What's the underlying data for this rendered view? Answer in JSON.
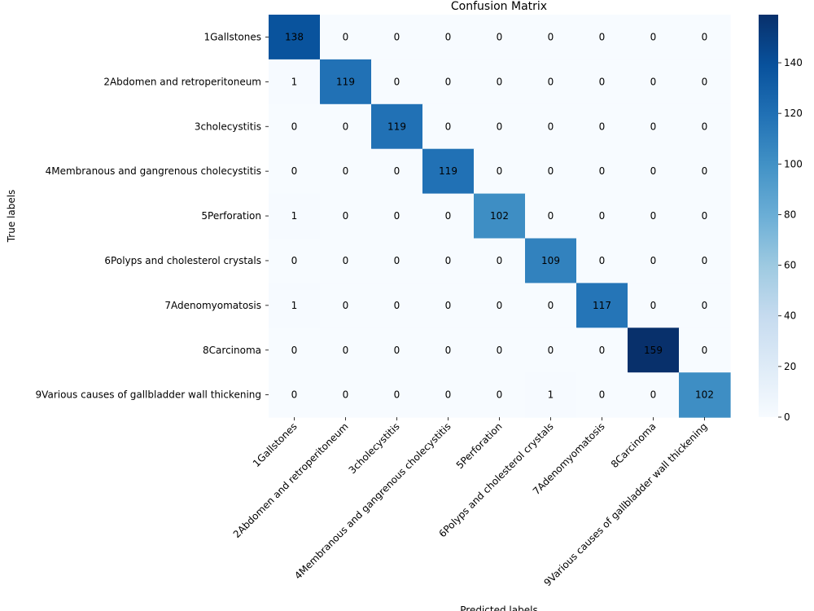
{
  "chart_data": {
    "type": "heatmap",
    "title": "Confusion Matrix",
    "xlabel": "Predicted labels",
    "ylabel": "True labels",
    "labels": [
      "1Gallstones",
      "2Abdomen and retroperitoneum",
      "3cholecystitis",
      "4Membranous and gangrenous cholecystitis",
      "5Perforation",
      "6Polyps and cholesterol crystals",
      "7Adenomyomatosis",
      "8Carcinoma",
      "9Various causes of gallbladder wall thickening"
    ],
    "matrix": [
      [
        138,
        0,
        0,
        0,
        0,
        0,
        0,
        0,
        0
      ],
      [
        1,
        119,
        0,
        0,
        0,
        0,
        0,
        0,
        0
      ],
      [
        0,
        0,
        119,
        0,
        0,
        0,
        0,
        0,
        0
      ],
      [
        0,
        0,
        0,
        119,
        0,
        0,
        0,
        0,
        0
      ],
      [
        1,
        0,
        0,
        0,
        102,
        0,
        0,
        0,
        0
      ],
      [
        0,
        0,
        0,
        0,
        0,
        109,
        0,
        0,
        0
      ],
      [
        1,
        0,
        0,
        0,
        0,
        0,
        117,
        0,
        0
      ],
      [
        0,
        0,
        0,
        0,
        0,
        0,
        0,
        159,
        0
      ],
      [
        0,
        0,
        0,
        0,
        0,
        1,
        0,
        0,
        102
      ]
    ],
    "colorbar": {
      "colormap": "Blues",
      "min": 0,
      "max": 159,
      "ticks": [
        0,
        20,
        40,
        60,
        80,
        100,
        120,
        140
      ]
    }
  }
}
